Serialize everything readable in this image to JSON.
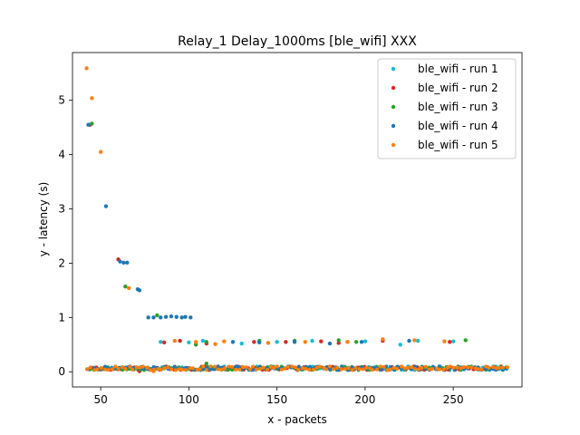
{
  "chart_data": {
    "type": "scatter",
    "title": "Relay_1 Delay_1000ms [ble_wifi] XXX",
    "xlabel": "x - packets",
    "ylabel": "y - latency (s)",
    "xlim": [
      34,
      289
    ],
    "ylim": [
      -0.28,
      5.88
    ],
    "xticks": [
      50,
      100,
      150,
      200,
      250
    ],
    "yticks": [
      0,
      1,
      2,
      3,
      4,
      5
    ],
    "grid": false,
    "legend_position": "top-right",
    "series": [
      {
        "name": "ble_wifi - run 1",
        "color": "#17becf",
        "outliers": [
          [
            84,
            0.55
          ],
          [
            100,
            0.54
          ],
          [
            108,
            0.57
          ],
          [
            130,
            0.52
          ],
          [
            150,
            0.55
          ],
          [
            170,
            0.57
          ],
          [
            190,
            0.55
          ],
          [
            200,
            0.56
          ],
          [
            220,
            0.5
          ],
          [
            230,
            0.57
          ],
          [
            250,
            0.56
          ]
        ],
        "baseline": {
          "x_start": 42,
          "x_end": 280,
          "step": 2,
          "y_min": 0.03,
          "y_max": 0.1,
          "seed": 11
        }
      },
      {
        "name": "ble_wifi - run 2",
        "color": "#d62728",
        "outliers": [
          [
            44,
            4.55
          ],
          [
            60,
            2.07
          ],
          [
            86,
            0.54
          ],
          [
            95,
            0.57
          ],
          [
            110,
            0.52
          ],
          [
            137,
            0.55
          ],
          [
            155,
            0.55
          ],
          [
            175,
            0.56
          ],
          [
            185,
            0.53
          ],
          [
            210,
            0.57
          ],
          [
            248,
            0.55
          ],
          [
            72,
            0.01
          ]
        ],
        "baseline": {
          "x_start": 43,
          "x_end": 280,
          "step": 2,
          "y_min": 0.03,
          "y_max": 0.1,
          "seed": 23
        }
      },
      {
        "name": "ble_wifi - run 3",
        "color": "#2ca02c",
        "outliers": [
          [
            45,
            4.57
          ],
          [
            64,
            1.57
          ],
          [
            82,
            1.04
          ],
          [
            104,
            0.5
          ],
          [
            110,
            0.55
          ],
          [
            140,
            0.57
          ],
          [
            160,
            0.57
          ],
          [
            185,
            0.58
          ],
          [
            195,
            0.55
          ],
          [
            257,
            0.58
          ],
          [
            110,
            0.15
          ]
        ],
        "baseline": {
          "x_start": 42,
          "x_end": 280,
          "step": 2,
          "y_min": 0.03,
          "y_max": 0.1,
          "seed": 37
        }
      },
      {
        "name": "ble_wifi - run 4",
        "color": "#1f77b4",
        "outliers": [
          [
            43,
            4.55
          ],
          [
            53,
            3.05
          ],
          [
            61,
            2.03
          ],
          [
            63,
            2.01
          ],
          [
            65,
            2.01
          ],
          [
            71,
            1.52
          ],
          [
            72,
            1.5
          ],
          [
            77,
            1.0
          ],
          [
            80,
            1.0
          ],
          [
            84,
            1.0
          ],
          [
            87,
            1.01
          ],
          [
            90,
            1.02
          ],
          [
            93,
            1.01
          ],
          [
            96,
            1.0
          ],
          [
            98,
            1.01
          ],
          [
            101,
            1.0
          ],
          [
            125,
            0.55
          ],
          [
            140,
            0.54
          ],
          [
            160,
            0.55
          ],
          [
            180,
            0.52
          ],
          [
            198,
            0.55
          ],
          [
            225,
            0.57
          ]
        ],
        "baseline": {
          "x_start": 42,
          "x_end": 280,
          "step": 2,
          "y_min": 0.03,
          "y_max": 0.1,
          "seed": 51
        }
      },
      {
        "name": "ble_wifi - run 5",
        "color": "#ff7f0e",
        "outliers": [
          [
            42,
            5.59
          ],
          [
            45,
            5.04
          ],
          [
            50,
            4.05
          ],
          [
            66,
            1.54
          ],
          [
            92,
            0.57
          ],
          [
            104,
            0.55
          ],
          [
            115,
            0.51
          ],
          [
            120,
            0.56
          ],
          [
            145,
            0.53
          ],
          [
            166,
            0.55
          ],
          [
            190,
            0.55
          ],
          [
            210,
            0.6
          ],
          [
            228,
            0.58
          ],
          [
            245,
            0.56
          ],
          [
            80,
            0.01
          ]
        ],
        "baseline": {
          "x_start": 42,
          "x_end": 281,
          "step": 2,
          "y_min": 0.03,
          "y_max": 0.1,
          "seed": 67
        }
      }
    ]
  }
}
